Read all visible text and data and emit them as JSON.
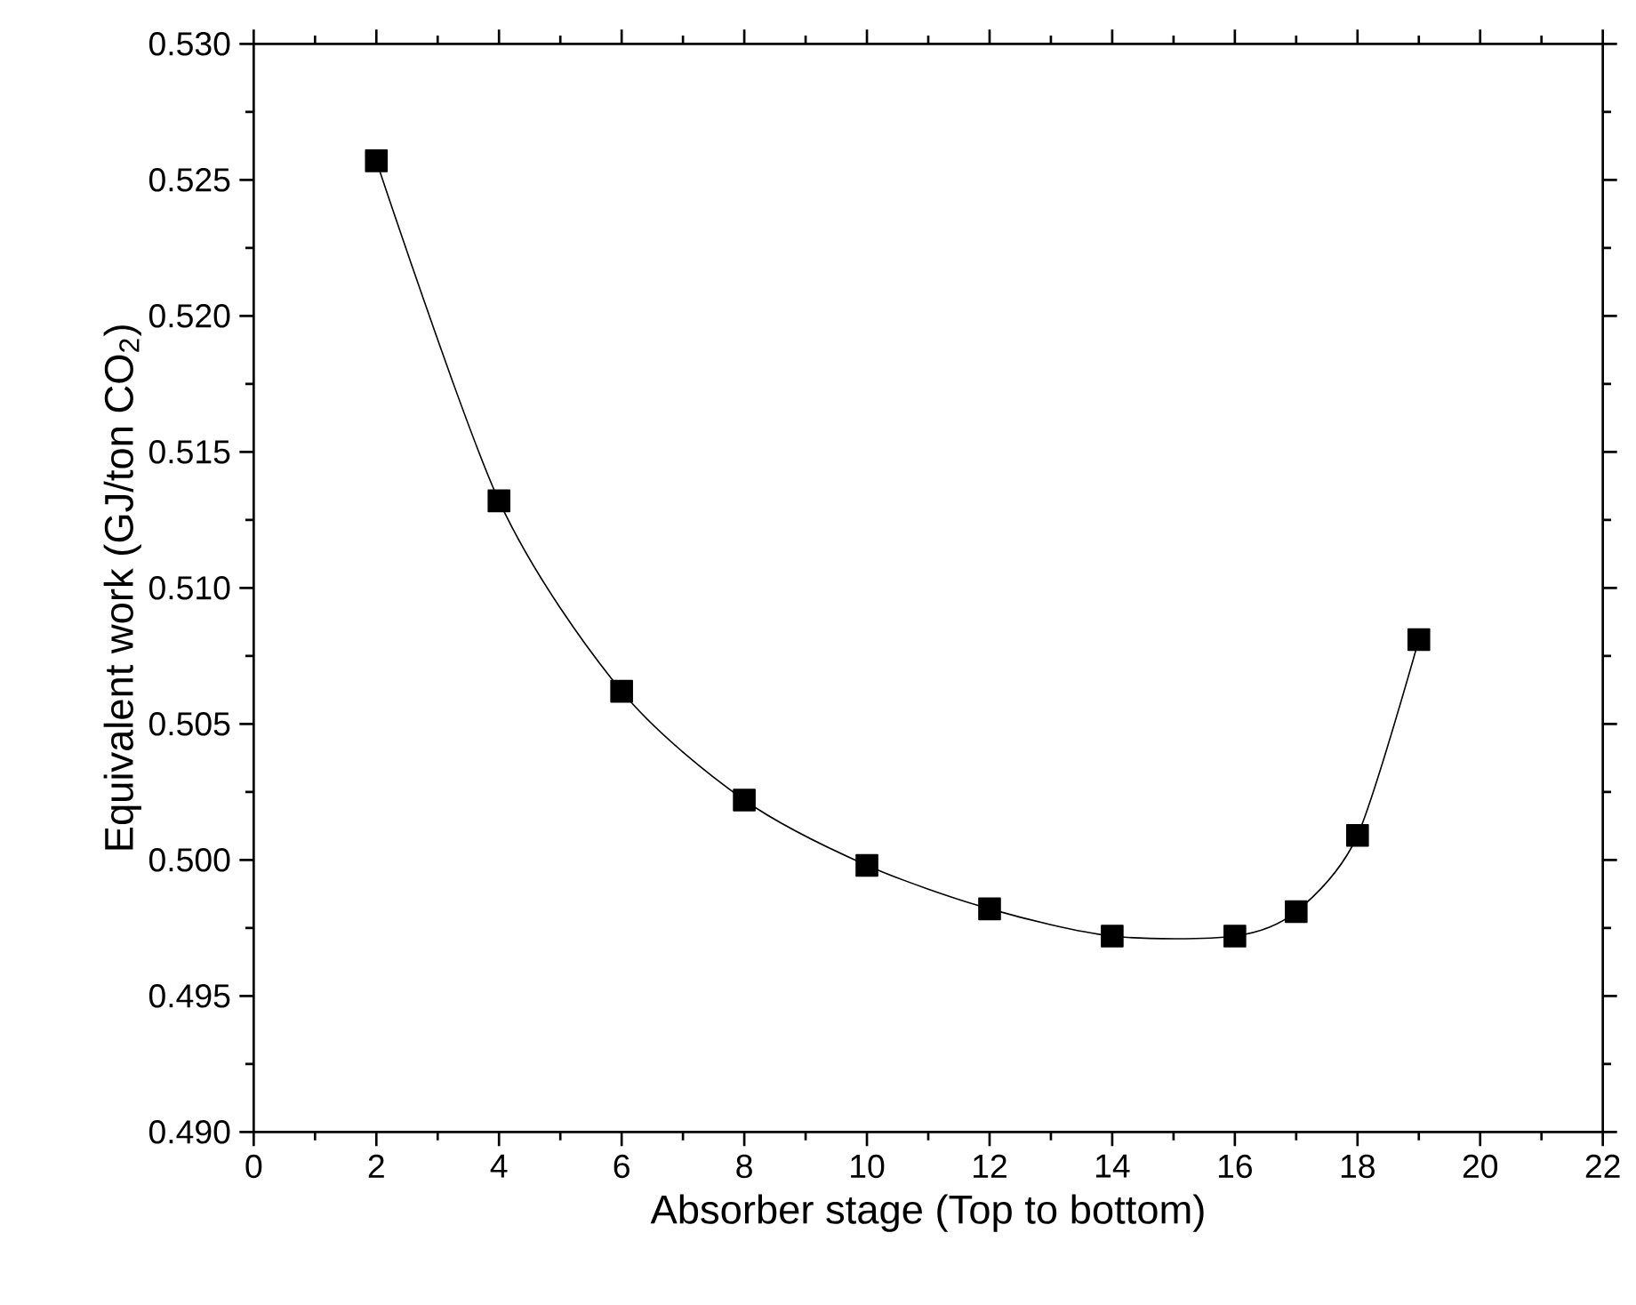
{
  "chart_data": {
    "type": "line",
    "xlabel": "Absorber stage (Top to bottom)",
    "ylabel": "Equivalent work (GJ/ton CO$_{2}$)",
    "x": [
      2,
      4,
      6,
      8,
      10,
      12,
      14,
      16,
      17,
      18,
      19
    ],
    "values": [
      0.5257,
      0.5132,
      0.5062,
      0.5022,
      0.4998,
      0.4982,
      0.4972,
      0.4972,
      0.4981,
      0.5009,
      0.5081
    ],
    "color": "#000000",
    "marker": "square",
    "line_style": "solid",
    "xlim": [
      0,
      22
    ],
    "xticks": [
      0,
      2,
      4,
      6,
      8,
      10,
      12,
      14,
      16,
      18,
      20,
      22
    ],
    "ylim": [
      0.49,
      0.53
    ],
    "yticks": [
      {
        "value": 0.49,
        "label": "0.490"
      },
      {
        "value": 0.495,
        "label": "0.495"
      },
      {
        "value": 0.5,
        "label": "0.500"
      },
      {
        "value": 0.505,
        "label": "0.505"
      },
      {
        "value": 0.51,
        "label": "0.510"
      },
      {
        "value": 0.515,
        "label": "0.515"
      },
      {
        "value": 0.52,
        "label": "0.520"
      },
      {
        "value": 0.525,
        "label": "0.525"
      },
      {
        "value": 0.53,
        "label": "0.530"
      }
    ]
  }
}
